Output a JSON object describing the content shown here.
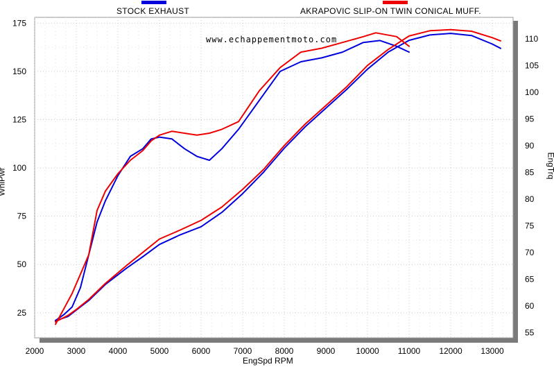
{
  "legend": [
    {
      "label": "STOCK EXHAUST",
      "color": "#0000dd"
    },
    {
      "label": "AKRAPOVIC SLIP-ON TWIN CONICAL MUFF.",
      "color": "#ee0000"
    }
  ],
  "watermark": "www.echappementmoto.com",
  "chart_data": {
    "type": "line",
    "xlabel": "EngSpd  RPM",
    "ylabel_left": "WhlPwr",
    "ylabel_right": "EngTrq",
    "xlim": [
      2000,
      13500
    ],
    "ylim_left": [
      12,
      178
    ],
    "ylim_right": [
      54,
      114
    ],
    "xticks": [
      2000,
      3000,
      4000,
      5000,
      6000,
      7000,
      8000,
      9000,
      10000,
      11000,
      12000,
      13000
    ],
    "yticks_left": [
      25,
      50,
      75,
      100,
      125,
      150,
      175
    ],
    "yticks_right": [
      55,
      60,
      65,
      70,
      75,
      80,
      85,
      90,
      95,
      100,
      105,
      110
    ],
    "grid": true,
    "series": [
      {
        "name": "STOCK EXHAUST",
        "axis": "left",
        "color": "#0000dd",
        "x": [
          2500,
          2700,
          2900,
          3100,
          3300,
          3500,
          3700,
          4000,
          4300,
          4600,
          4800,
          5000,
          5300,
          5600,
          5900,
          6200,
          6500,
          6900,
          7400,
          7900,
          8400,
          8900,
          9400,
          9900,
          10300,
          10700,
          11000
        ],
        "y": [
          21,
          24,
          28,
          38,
          55,
          72,
          83,
          96,
          106,
          110,
          115,
          116,
          115,
          110,
          106,
          104,
          110,
          120,
          135,
          150,
          155,
          157,
          160,
          165,
          166,
          163,
          160
        ]
      },
      {
        "name": "STOCK EXHAUST",
        "axis": "right",
        "color": "#0000dd",
        "x": [
          2500,
          2800,
          3000,
          3300,
          3700,
          4200,
          4600,
          5000,
          5500,
          6000,
          6500,
          7000,
          7500,
          8000,
          8500,
          9000,
          9500,
          10000,
          10500,
          11000,
          11500,
          12000,
          12500,
          13000,
          13200
        ],
        "y": [
          57.2,
          58.0,
          59.2,
          61.0,
          64.0,
          67.0,
          69.2,
          71.5,
          73.3,
          74.8,
          77.5,
          81.0,
          85.0,
          89.5,
          93.5,
          97.0,
          100.5,
          104.3,
          107.5,
          109.7,
          110.7,
          111.0,
          110.6,
          109.0,
          108.2
        ]
      },
      {
        "name": "AKRAPOVIC SLIP-ON TWIN CONICAL MUFF.",
        "axis": "left",
        "color": "#ee0000",
        "x": [
          2500,
          2700,
          2900,
          3100,
          3300,
          3500,
          3700,
          4000,
          4300,
          4600,
          4800,
          5000,
          5300,
          5600,
          5900,
          6200,
          6500,
          6900,
          7400,
          7900,
          8400,
          8900,
          9400,
          9900,
          10200,
          10700,
          11000
        ],
        "y": [
          19,
          27,
          35,
          45,
          55,
          78,
          88,
          97,
          104,
          109,
          114,
          117,
          119,
          118,
          117,
          118,
          120,
          124,
          140,
          152,
          160,
          162,
          165,
          168,
          170,
          168,
          163
        ]
      },
      {
        "name": "AKRAPOVIC SLIP-ON TWIN CONICAL MUFF.",
        "axis": "right",
        "color": "#ee0000",
        "x": [
          2500,
          2800,
          3000,
          3300,
          3700,
          4200,
          4600,
          5000,
          5500,
          6000,
          6500,
          7000,
          7500,
          8000,
          8500,
          9000,
          9500,
          10000,
          10500,
          11000,
          11500,
          12000,
          12500,
          13000,
          13200
        ],
        "y": [
          57.0,
          58.2,
          59.3,
          61.2,
          64.2,
          67.5,
          70.0,
          72.5,
          74.2,
          76.0,
          78.5,
          81.8,
          85.5,
          90.0,
          94.0,
          97.5,
          101.0,
          105.0,
          108.0,
          110.5,
          111.5,
          111.7,
          111.4,
          110.2,
          109.6
        ]
      }
    ]
  }
}
